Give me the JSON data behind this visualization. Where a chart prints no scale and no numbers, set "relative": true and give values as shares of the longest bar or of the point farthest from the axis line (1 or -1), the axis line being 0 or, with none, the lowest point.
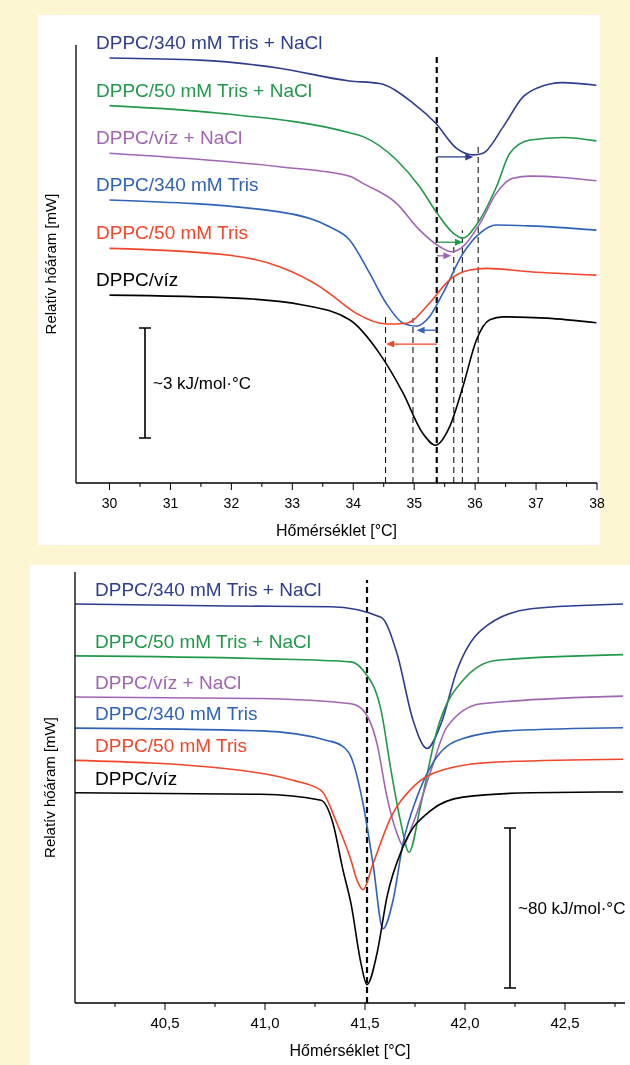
{
  "chart_data": [
    {
      "type": "line",
      "relative": true,
      "xlabel": "Hőmérséklet [°C]",
      "ylabel": "Relatív hőáram [mW]",
      "xlim": [
        29.45,
        38
      ],
      "xticks": [
        30,
        {
          "value": 30.5,
          "label": null
        },
        31,
        {
          "value": 31.5,
          "label": null
        },
        32,
        {
          "value": 32.5,
          "label": null
        },
        33,
        {
          "value": 33.5,
          "label": null
        },
        34,
        {
          "value": 34.5,
          "label": null
        },
        35,
        {
          "value": 35.5,
          "label": null
        },
        36,
        {
          "value": 36.5,
          "label": null
        },
        37,
        {
          "value": 37.5,
          "label": null
        },
        38
      ],
      "grid": false,
      "legend": false,
      "marker": "none",
      "line_style": "solid",
      "annotations": [
        "~3 kJ/mol·°C"
      ],
      "ref_lines": [
        {
          "axis": "x",
          "value": 35.37,
          "color": "#000000",
          "line_style": "dashed"
        },
        {
          "axis": "x",
          "value": 34.53,
          "color": "#000000",
          "line_style": "dashed"
        },
        {
          "axis": "x",
          "value": 34.98,
          "color": "#000000",
          "line_style": "dashed"
        },
        {
          "axis": "x",
          "value": 35.65,
          "color": "#000000",
          "line_style": "dashed"
        },
        {
          "axis": "x",
          "value": 35.79,
          "color": "#000000",
          "line_style": "dashed"
        },
        {
          "axis": "x",
          "value": 36.05,
          "color": "#000000",
          "line_style": "dashed"
        }
      ],
      "series": [
        {
          "name": "DPPC/340 mM Tris + NaCl",
          "color": "#2e3d8f",
          "x": [
            30.0,
            31.48,
            32.79,
            33.94,
            34.43,
            34.98,
            35.35,
            35.69,
            35.97,
            36.13,
            36.46,
            36.79,
            37.01,
            37.44,
            37.99
          ],
          "values": [
            1.0,
            0.995,
            0.976,
            0.946,
            0.94,
            0.894,
            0.847,
            0.788,
            0.772,
            0.776,
            0.838,
            0.909,
            0.929,
            0.942,
            0.936
          ]
        },
        {
          "name": "DPPC/50 mM Tris + NaCl",
          "color": "#22984a",
          "x": [
            30.0,
            31.81,
            33.94,
            34.16,
            34.71,
            35.09,
            35.36,
            35.64,
            35.8,
            36.02,
            36.35,
            36.57,
            36.9,
            37.44,
            37.99
          ],
          "values": [
            0.888,
            0.87,
            0.824,
            0.815,
            0.76,
            0.697,
            0.638,
            0.588,
            0.576,
            0.607,
            0.697,
            0.776,
            0.807,
            0.813,
            0.805
          ]
        },
        {
          "name": "DPPC/víz + NaCl",
          "color": "#a065b4",
          "x": [
            30.0,
            32.79,
            33.94,
            34.16,
            34.71,
            35.09,
            35.42,
            35.61,
            35.8,
            36.08,
            36.35,
            36.62,
            36.9,
            37.44,
            37.99
          ],
          "values": [
            0.776,
            0.744,
            0.722,
            0.705,
            0.658,
            0.595,
            0.556,
            0.544,
            0.556,
            0.611,
            0.682,
            0.717,
            0.722,
            0.719,
            0.711
          ]
        },
        {
          "name": "DPPC/340 mM Tris",
          "color": "#2f63b8",
          "x": [
            30.0,
            32.79,
            33.61,
            33.94,
            34.27,
            34.54,
            34.82,
            35.04,
            35.25,
            35.47,
            35.8,
            36.08,
            36.35,
            36.9,
            37.99
          ],
          "values": [
            0.666,
            0.638,
            0.603,
            0.572,
            0.493,
            0.423,
            0.376,
            0.369,
            0.391,
            0.446,
            0.54,
            0.588,
            0.607,
            0.605,
            0.595
          ]
        },
        {
          "name": "DPPC/50 mM Tris",
          "color": "#f0462a",
          "x": [
            30.0,
            31.97,
            32.79,
            33.45,
            33.61,
            34.05,
            34.54,
            34.87,
            35.25,
            35.58,
            35.91,
            36.19,
            36.9,
            37.99
          ],
          "values": [
            0.552,
            0.536,
            0.509,
            0.462,
            0.446,
            0.399,
            0.374,
            0.376,
            0.423,
            0.478,
            0.501,
            0.505,
            0.497,
            0.489
          ]
        },
        {
          "name": "DPPC/víz",
          "color": "#000000",
          "x": [
            30.0,
            32.08,
            33.17,
            33.94,
            34.43,
            34.82,
            35.14,
            35.35,
            35.58,
            35.8,
            36.02,
            36.24,
            36.46,
            37.17,
            37.99
          ],
          "values": [
            0.442,
            0.435,
            0.419,
            0.384,
            0.305,
            0.211,
            0.117,
            0.089,
            0.132,
            0.227,
            0.336,
            0.384,
            0.391,
            0.388,
            0.377
          ]
        }
      ]
    },
    {
      "type": "line",
      "relative": true,
      "xlabel": "Hőmérséklet [°C]",
      "ylabel": "Relatív hőáram [mW]",
      "xlim": [
        40.05,
        42.8
      ],
      "xticks": [
        {
          "value": 40.25,
          "label": null
        },
        {
          "value": 40.5,
          "label": "40,5"
        },
        {
          "value": 40.75,
          "label": null
        },
        {
          "value": 41.0,
          "label": "41,0"
        },
        {
          "value": 41.25,
          "label": null
        },
        {
          "value": 41.5,
          "label": "41,5"
        },
        {
          "value": 41.75,
          "label": null
        },
        {
          "value": 42.0,
          "label": "42,0"
        },
        {
          "value": 42.25,
          "label": null
        },
        {
          "value": 42.5,
          "label": "42,5"
        },
        {
          "value": 42.75,
          "label": null
        }
      ],
      "grid": false,
      "legend": false,
      "marker": "none",
      "line_style": "solid",
      "annotations": [
        "~80 kJ/mol·°C"
      ],
      "ref_lines": [
        {
          "axis": "x",
          "value": 41.51,
          "color": "#000000",
          "line_style": "dashed"
        }
      ],
      "series": [
        {
          "name": "DPPC/340 mM Tris + NaCl",
          "color": "#2e3d8f",
          "x": [
            40.05,
            40.81,
            41.33,
            41.58,
            41.66,
            41.74,
            41.81,
            41.88,
            41.96,
            42.08,
            42.33,
            42.79
          ],
          "values": [
            1.0,
            0.995,
            0.993,
            0.967,
            0.876,
            0.709,
            0.638,
            0.7,
            0.834,
            0.934,
            0.988,
            1.0
          ]
        },
        {
          "name": "DPPC/50 mM Tris + NaCl",
          "color": "#22984a",
          "x": [
            40.05,
            40.98,
            41.43,
            41.49,
            41.58,
            41.63,
            41.68,
            41.72,
            41.78,
            41.86,
            41.99,
            42.16,
            42.79
          ],
          "values": [
            0.87,
            0.863,
            0.855,
            0.834,
            0.734,
            0.583,
            0.45,
            0.378,
            0.5,
            0.683,
            0.809,
            0.859,
            0.873
          ]
        },
        {
          "name": "DPPC/víz + NaCl",
          "color": "#a065b4",
          "x": [
            40.05,
            40.98,
            41.43,
            41.49,
            41.56,
            41.61,
            41.66,
            41.69,
            41.74,
            41.83,
            41.91,
            42.08,
            42.79
          ],
          "values": [
            0.767,
            0.763,
            0.75,
            0.734,
            0.65,
            0.516,
            0.425,
            0.395,
            0.45,
            0.583,
            0.692,
            0.75,
            0.769
          ]
        },
        {
          "name": "DPPC/340 mM Tris",
          "color": "#2f63b8",
          "x": [
            40.05,
            40.98,
            41.31,
            41.38,
            41.43,
            41.49,
            41.54,
            41.59,
            41.64,
            41.69,
            41.76,
            41.86,
            41.99,
            42.24,
            42.79
          ],
          "values": [
            0.689,
            0.682,
            0.658,
            0.646,
            0.617,
            0.5,
            0.349,
            0.186,
            0.257,
            0.4,
            0.516,
            0.617,
            0.663,
            0.683,
            0.69
          ]
        },
        {
          "name": "DPPC/50 mM Tris",
          "color": "#f0462a",
          "x": [
            40.05,
            40.81,
            41.14,
            41.28,
            41.36,
            41.43,
            41.46,
            41.49,
            41.54,
            41.63,
            41.74,
            41.91,
            42.16,
            42.79
          ],
          "values": [
            0.608,
            0.587,
            0.558,
            0.533,
            0.45,
            0.358,
            0.308,
            0.284,
            0.349,
            0.466,
            0.541,
            0.587,
            0.604,
            0.611
          ]
        },
        {
          "name": "DPPC/víz",
          "color": "#000000",
          "x": [
            40.05,
            40.98,
            41.28,
            41.34,
            41.39,
            41.43,
            41.48,
            41.51,
            41.56,
            41.61,
            41.69,
            41.83,
            41.99,
            42.33,
            42.79
          ],
          "values": [
            0.527,
            0.523,
            0.508,
            0.45,
            0.333,
            0.249,
            0.099,
            0.046,
            0.124,
            0.266,
            0.391,
            0.483,
            0.516,
            0.527,
            0.529
          ]
        }
      ]
    }
  ]
}
